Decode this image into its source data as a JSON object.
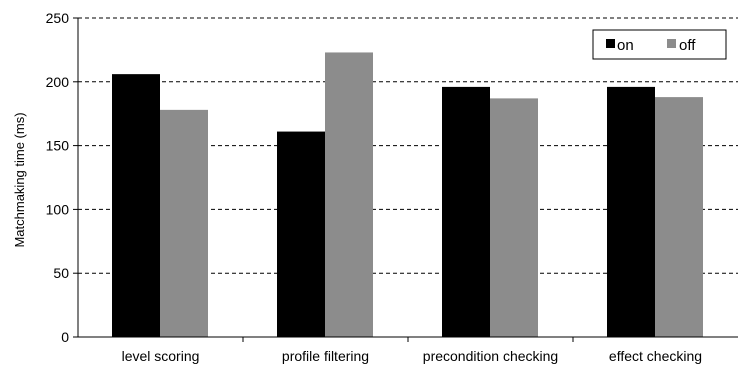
{
  "chart_data": {
    "type": "bar",
    "categories": [
      "level scoring",
      "profile filtering",
      "precondition checking",
      "effect checking"
    ],
    "series": [
      {
        "name": "on",
        "values": [
          206,
          161,
          196,
          196
        ]
      },
      {
        "name": "off",
        "values": [
          178,
          223,
          187,
          188
        ]
      }
    ],
    "xlabel": "",
    "ylabel": "Matchmaking time (ms)",
    "ylim": [
      0,
      250
    ],
    "yticks": [
      "0",
      "50",
      "100",
      "150",
      "200",
      "250"
    ],
    "grid": true,
    "legend_position": "top-right"
  },
  "colors": {
    "on": "#000000",
    "off": "#8c8c8c",
    "grid": "#000000"
  }
}
